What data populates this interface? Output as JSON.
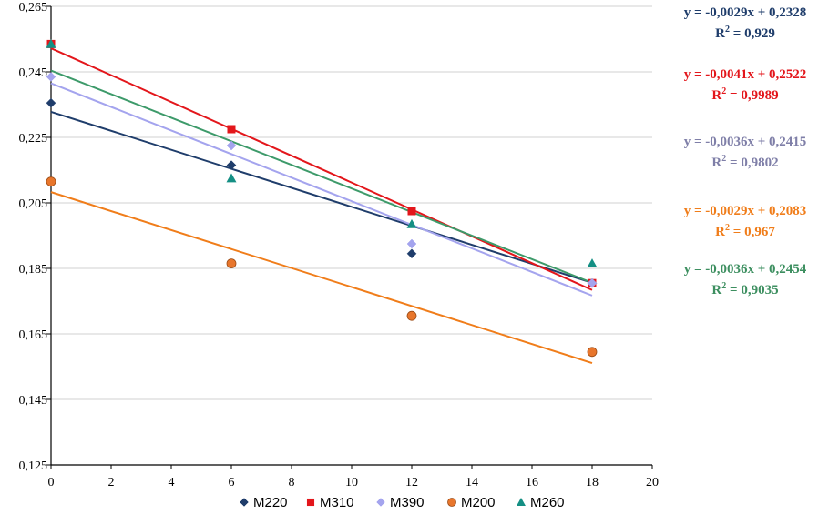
{
  "chart_data": {
    "type": "scatter",
    "title": "",
    "xlabel": "",
    "ylabel": "",
    "xlim": [
      0,
      20
    ],
    "ylim": [
      0.125,
      0.265
    ],
    "x_ticks": [
      "0",
      "2",
      "4",
      "6",
      "8",
      "10",
      "12",
      "14",
      "16",
      "18",
      "20"
    ],
    "y_ticks": [
      "0,125",
      "0,145",
      "0,165",
      "0,185",
      "0,205",
      "0,225",
      "0,245",
      "0,265"
    ],
    "grid": "horizontal",
    "legend_position": "bottom",
    "series": [
      {
        "name": "M220",
        "color": "#1f3d6b",
        "marker": "diamond",
        "x": [
          0,
          6,
          12,
          18
        ],
        "values": [
          0.2355,
          0.2165,
          0.1895,
          0.1805
        ],
        "trend": {
          "slope": -0.0029,
          "intercept": 0.2328,
          "equation": "y = -0,0029x + 0,2328",
          "r2_label": "R",
          "r2_value": " = 0,929"
        }
      },
      {
        "name": "M310",
        "color": "#e3161b",
        "marker": "square",
        "x": [
          0,
          6,
          12,
          18
        ],
        "values": [
          0.2535,
          0.2275,
          0.2025,
          0.1805
        ],
        "trend": {
          "slope": -0.0041,
          "intercept": 0.2522,
          "equation": "y = -0,0041x + 0,2522",
          "r2_label": "R",
          "r2_value": " = 0,9989"
        }
      },
      {
        "name": "M390",
        "color": "#a4a4ee",
        "marker": "diamond",
        "x": [
          0,
          6,
          12,
          18
        ],
        "values": [
          0.2435,
          0.2225,
          0.1925,
          0.1805
        ],
        "trend": {
          "slope": -0.0036,
          "intercept": 0.2415,
          "equation": "y = -0,0036x + 0,2415",
          "r2_label": "R",
          "r2_value": " = 0,9802"
        }
      },
      {
        "name": "M200",
        "color": "#e8762c",
        "marker": "circle",
        "x": [
          0,
          6,
          12,
          18
        ],
        "values": [
          0.2115,
          0.1865,
          0.1705,
          0.1595
        ],
        "trend": {
          "slope": -0.0029,
          "intercept": 0.2083,
          "equation": "y = -0,0029x + 0,2083",
          "r2_label": "R",
          "r2_value": " = 0,967"
        }
      },
      {
        "name": "M260",
        "color": "#148f84",
        "marker": "triangle",
        "x": [
          0,
          6,
          12,
          18
        ],
        "values": [
          0.2535,
          0.2125,
          0.1985,
          0.1865
        ],
        "trend": {
          "slope": -0.0036,
          "intercept": 0.2454,
          "equation": "y = -0,0036x + 0,2454",
          "r2_label": "R",
          "r2_value": " = 0,9035"
        }
      }
    ],
    "equation_order": [
      "M220",
      "M310",
      "M390",
      "M200",
      "M260"
    ],
    "equation_colors": [
      "#1f3d6b",
      "#e3161b",
      "#7f7fa8",
      "#f07d1a",
      "#3d8f60"
    ],
    "trend_colors": [
      "#1f3d6b",
      "#e3161b",
      "#a4a4ee",
      "#f07d1a",
      "#3d9a6a"
    ]
  }
}
